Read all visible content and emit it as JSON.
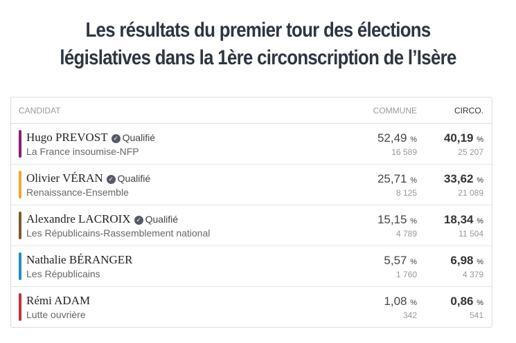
{
  "title_line1": "Les résultats du premier tour des élections",
  "title_line2": "législatives dans la 1ère circonscription de l’Isère",
  "headers": {
    "candidate": "CANDIDAT",
    "commune": "COMMUNE",
    "circo": "CIRCO."
  },
  "percent_sign": "%",
  "rows": [
    {
      "name": "Hugo PREVOST",
      "qualified": "Qualifié",
      "party": "La France insoumise-NFP",
      "color": "#8e1b6e",
      "commune_pct": "52,49",
      "commune_votes": "16 589",
      "circo_pct": "40,19",
      "circo_votes": "25 207"
    },
    {
      "name": "Olivier VÉRAN",
      "qualified": "Qualifié",
      "party": "Renaissance-Ensemble",
      "color": "#f2a72b",
      "commune_pct": "25,71",
      "commune_votes": "8 125",
      "circo_pct": "33,62",
      "circo_votes": "21 089"
    },
    {
      "name": "Alexandre LACROIX",
      "qualified": "Qualifié",
      "party": "Les Républicains-Rassemblement national",
      "color": "#7b5a2f",
      "commune_pct": "15,15",
      "commune_votes": "4 789",
      "circo_pct": "18,34",
      "circo_votes": "11 504"
    },
    {
      "name": "Nathalie BÉRANGER",
      "qualified": null,
      "party": "Les Républicains",
      "color": "#1d8fc4",
      "commune_pct": "5,57",
      "commune_votes": "1 760",
      "circo_pct": "6,98",
      "circo_votes": "4 379"
    },
    {
      "name": "Rémi ADAM",
      "qualified": null,
      "party": "Lutte ouvrière",
      "color": "#c3303b",
      "commune_pct": "1,08",
      "commune_votes": "342",
      "circo_pct": "0,86",
      "circo_votes": "541"
    }
  ]
}
